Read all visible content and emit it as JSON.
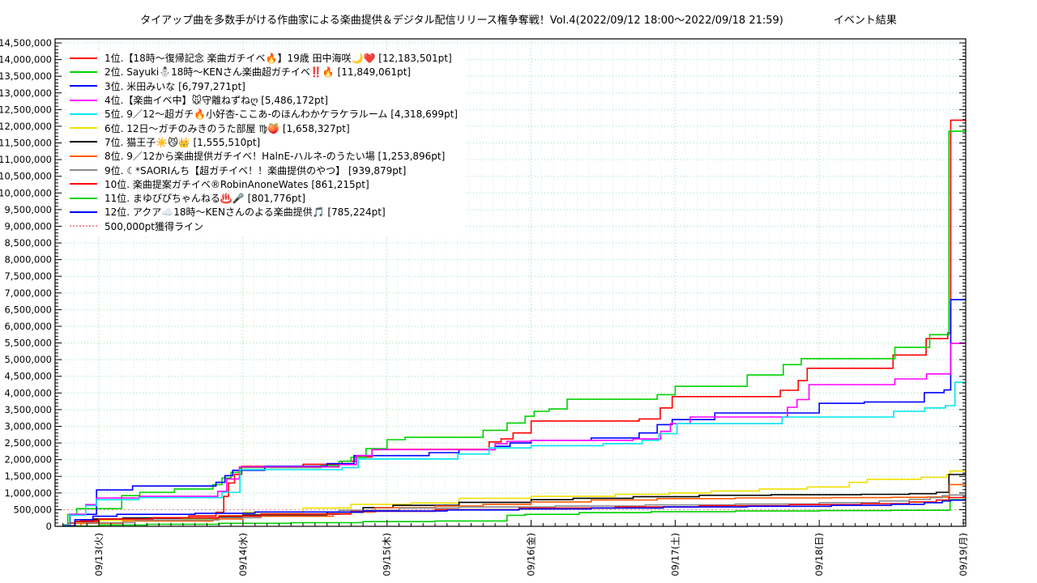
{
  "title": {
    "main": "タイアップ曲を多数手がける作曲家による楽曲提供＆デジタル配信リリース権争奪戦！Vol.4(2022/09/12 18:00～2022/09/18 21:59)",
    "suffix": "イベント結果"
  },
  "chart_data": {
    "type": "line",
    "step_interpolation": "step-after",
    "x_axis": {
      "domain_hours": [
        -1.3,
        150.4
      ],
      "epoch": "2022/09/12 18:00",
      "day_tick_hours": [
        6,
        30,
        54,
        78,
        102,
        126,
        150
      ],
      "labels": [
        "09/13(火)",
        "09/14(水)",
        "09/15(木)",
        "09/16(金)",
        "09/17(土)",
        "09/18(日)",
        "09/19(月)"
      ],
      "minor_tick_hours": 2
    },
    "y_axis": {
      "min": 0,
      "label_max": 14500000,
      "major_step": 500000,
      "minor_step": 100000,
      "tick_format": "comma"
    },
    "grid": {
      "major_color": "#9fe0a8",
      "texture_dot_color": "#c9efe9",
      "on": true
    },
    "threshold_line": {
      "value": 500000,
      "label": "500,000pt獲得ライン",
      "color": "#ff8d8d",
      "style": "dotted"
    },
    "legend_position": "top-left-inside",
    "series": [
      {
        "rank": 1,
        "legend_label": " 1位.【18時～復帰記念 楽曲ガチイベ🔥】19歳 田中海咲🌙❤️ [12,183,501pt]",
        "final_pt": 12183501,
        "color": "#ff0000",
        "points": [
          [
            0,
            20000
          ],
          [
            1,
            100000
          ],
          [
            3,
            190000
          ],
          [
            13,
            240000
          ],
          [
            21,
            310000
          ],
          [
            25.5,
            420000
          ],
          [
            26.8,
            900000
          ],
          [
            27.6,
            1300000
          ],
          [
            28.6,
            1560000
          ],
          [
            29.8,
            1800000
          ],
          [
            40,
            1860000
          ],
          [
            46.5,
            1950000
          ],
          [
            48.8,
            2080000
          ],
          [
            51.5,
            2310000
          ],
          [
            71,
            2530000
          ],
          [
            73,
            2620000
          ],
          [
            75,
            2800000
          ],
          [
            78,
            3160000
          ],
          [
            96,
            3220000
          ],
          [
            99.5,
            3550000
          ],
          [
            101.5,
            3890000
          ],
          [
            119.5,
            4080000
          ],
          [
            122.5,
            4370000
          ],
          [
            124,
            4740000
          ],
          [
            138.3,
            5140000
          ],
          [
            143.8,
            5630000
          ],
          [
            147.4,
            5800000
          ],
          [
            147.9,
            12183501
          ]
        ]
      },
      {
        "rank": 2,
        "legend_label": " 2位. Sayuki⛄18時～KENさん楽曲超ガチイベ‼️🔥 [11,849,061pt]",
        "final_pt": 11849061,
        "color": "#00d200",
        "points": [
          [
            0,
            50000
          ],
          [
            0.8,
            350000
          ],
          [
            2.3,
            530000
          ],
          [
            9.8,
            920000
          ],
          [
            12.8,
            1020000
          ],
          [
            18.6,
            1120000
          ],
          [
            25,
            1250000
          ],
          [
            26.5,
            1450000
          ],
          [
            28,
            1620000
          ],
          [
            29.6,
            1760000
          ],
          [
            43,
            1820000
          ],
          [
            46,
            1950000
          ],
          [
            48,
            2070000
          ],
          [
            50.5,
            2330000
          ],
          [
            54,
            2600000
          ],
          [
            57,
            2670000
          ],
          [
            70,
            2880000
          ],
          [
            74,
            3100000
          ],
          [
            77,
            3300000
          ],
          [
            78.5,
            3450000
          ],
          [
            81,
            3520000
          ],
          [
            84,
            3810000
          ],
          [
            99,
            3950000
          ],
          [
            102,
            4200000
          ],
          [
            114,
            4540000
          ],
          [
            120,
            4850000
          ],
          [
            123,
            5030000
          ],
          [
            138.6,
            5370000
          ],
          [
            144.4,
            5750000
          ],
          [
            147.6,
            11849061
          ]
        ]
      },
      {
        "rank": 3,
        "legend_label": " 3位. 米田みいな [6,797,271pt]",
        "final_pt": 6797271,
        "color": "#0000ff",
        "points": [
          [
            0,
            30000
          ],
          [
            1.2,
            360000
          ],
          [
            5.6,
            1090000
          ],
          [
            11.6,
            1210000
          ],
          [
            25.5,
            1320000
          ],
          [
            27,
            1520000
          ],
          [
            28.3,
            1680000
          ],
          [
            33.6,
            1800000
          ],
          [
            44,
            1880000
          ],
          [
            48.5,
            2120000
          ],
          [
            61,
            2210000
          ],
          [
            66,
            2300000
          ],
          [
            72,
            2400000
          ],
          [
            74.5,
            2500000
          ],
          [
            78,
            2580000
          ],
          [
            88,
            2650000
          ],
          [
            96,
            2800000
          ],
          [
            99,
            3050000
          ],
          [
            101.5,
            3200000
          ],
          [
            108.6,
            3400000
          ],
          [
            126,
            3690000
          ],
          [
            133.5,
            3730000
          ],
          [
            143.5,
            4010000
          ],
          [
            146.8,
            4090000
          ],
          [
            147.9,
            6797271
          ]
        ]
      },
      {
        "rank": 4,
        "legend_label": " 4位.【楽曲イベ中】🐭守離ねずねღ [5,486,172pt]",
        "final_pt": 5486172,
        "color": "#ff00ff",
        "points": [
          [
            0,
            40000
          ],
          [
            1.1,
            360000
          ],
          [
            3.8,
            650000
          ],
          [
            5.6,
            850000
          ],
          [
            12.7,
            900000
          ],
          [
            25.8,
            1050000
          ],
          [
            27.3,
            1420000
          ],
          [
            29.4,
            1780000
          ],
          [
            46,
            1850000
          ],
          [
            48.9,
            2120000
          ],
          [
            51.5,
            2300000
          ],
          [
            72,
            2480000
          ],
          [
            74,
            2550000
          ],
          [
            78,
            2580000
          ],
          [
            95,
            2620000
          ],
          [
            99.6,
            2850000
          ],
          [
            101.2,
            3080000
          ],
          [
            104.5,
            3280000
          ],
          [
            120.7,
            3570000
          ],
          [
            122.3,
            3800000
          ],
          [
            124.3,
            4250000
          ],
          [
            138.6,
            4420000
          ],
          [
            143.9,
            4570000
          ],
          [
            147.9,
            5486172
          ]
        ]
      },
      {
        "rank": 5,
        "legend_label": " 5位. 9／12～超ガチ🔥小好杏-ここあ-のほんわかケラケラルーム [4,318,699pt]",
        "final_pt": 4318699,
        "color": "#00e5ee",
        "points": [
          [
            0,
            40000
          ],
          [
            1.1,
            330000
          ],
          [
            3.8,
            620000
          ],
          [
            5.6,
            800000
          ],
          [
            12.7,
            860000
          ],
          [
            26.5,
            1020000
          ],
          [
            29.5,
            1700000
          ],
          [
            46.5,
            1760000
          ],
          [
            49.2,
            2020000
          ],
          [
            65.8,
            2170000
          ],
          [
            71,
            2350000
          ],
          [
            78,
            2420000
          ],
          [
            90,
            2480000
          ],
          [
            96.5,
            2580000
          ],
          [
            99.3,
            2780000
          ],
          [
            102.3,
            3080000
          ],
          [
            119.8,
            3280000
          ],
          [
            138.4,
            3450000
          ],
          [
            143.6,
            3550000
          ],
          [
            147,
            3620000
          ],
          [
            148.6,
            4318699
          ]
        ]
      },
      {
        "rank": 6,
        "legend_label": " 6位. 12日～ガチのみきのうた部屋 ♍🍑 [1,658,327pt]",
        "final_pt": 1658327,
        "color": "#f0e000",
        "points": [
          [
            0,
            20000
          ],
          [
            2,
            120000
          ],
          [
            6,
            180000
          ],
          [
            20,
            220000
          ],
          [
            26,
            320000
          ],
          [
            30,
            420000
          ],
          [
            40,
            550000
          ],
          [
            48,
            660000
          ],
          [
            58,
            700000
          ],
          [
            66,
            840000
          ],
          [
            78,
            900000
          ],
          [
            92,
            960000
          ],
          [
            101,
            1000000
          ],
          [
            108,
            1060000
          ],
          [
            116,
            1120000
          ],
          [
            124,
            1180000
          ],
          [
            131,
            1320000
          ],
          [
            134,
            1410000
          ],
          [
            143,
            1470000
          ],
          [
            147.2,
            1560000
          ],
          [
            147.8,
            1658327
          ]
        ]
      },
      {
        "rank": 7,
        "legend_label": " 7位. 猫王子☀️😼👑 [1,555,510pt]",
        "final_pt": 1555510,
        "color": "#000000",
        "points": [
          [
            0,
            10000
          ],
          [
            2,
            140000
          ],
          [
            5,
            220000
          ],
          [
            10,
            250000
          ],
          [
            26,
            290000
          ],
          [
            30,
            340000
          ],
          [
            44,
            420000
          ],
          [
            50,
            560000
          ],
          [
            55,
            630000
          ],
          [
            66,
            720000
          ],
          [
            78,
            800000
          ],
          [
            85,
            840000
          ],
          [
            95,
            890000
          ],
          [
            106,
            930000
          ],
          [
            118,
            950000
          ],
          [
            133,
            960000
          ],
          [
            141,
            980000
          ],
          [
            145.5,
            1020000
          ],
          [
            147.6,
            1555510
          ]
        ]
      },
      {
        "rank": 8,
        "legend_label": " 8位. 9／12から楽曲提供ガチイベ！HalnE-ハルネ-のうたい場 [1,253,896pt]",
        "final_pt": 1253896,
        "color": "#ff5a00",
        "points": [
          [
            0,
            10000
          ],
          [
            3,
            90000
          ],
          [
            10,
            160000
          ],
          [
            25,
            220000
          ],
          [
            30,
            300000
          ],
          [
            45,
            430000
          ],
          [
            52,
            560000
          ],
          [
            62,
            610000
          ],
          [
            70,
            660000
          ],
          [
            78,
            730000
          ],
          [
            88,
            790000
          ],
          [
            99,
            830000
          ],
          [
            112,
            850000
          ],
          [
            128,
            860000
          ],
          [
            138,
            870000
          ],
          [
            144,
            880000
          ],
          [
            147.7,
            1253896
          ]
        ]
      },
      {
        "rank": 9,
        "legend_label": " 9位. ☾*SAORIんち【超ガチイベ！！楽曲提供のやつ】 [939,879pt]",
        "final_pt": 939879,
        "color": "#8c8c8c",
        "points": [
          [
            0,
            10000
          ],
          [
            4,
            110000
          ],
          [
            12,
            190000
          ],
          [
            26,
            260000
          ],
          [
            33,
            360000
          ],
          [
            46,
            480000
          ],
          [
            56,
            550000
          ],
          [
            66,
            580000
          ],
          [
            82,
            610000
          ],
          [
            97,
            640000
          ],
          [
            112,
            670000
          ],
          [
            126,
            710000
          ],
          [
            136,
            760000
          ],
          [
            141,
            810000
          ],
          [
            144.5,
            860000
          ],
          [
            146.5,
            920000
          ],
          [
            147.6,
            939879
          ]
        ]
      },
      {
        "rank": 10,
        "legend_label": "10位. 楽曲提案ガチイベ®RobinAnoneWates [861,215pt]",
        "final_pt": 861215,
        "color": "#ff0000",
        "points": [
          [
            0,
            10000
          ],
          [
            2,
            150000
          ],
          [
            6,
            220000
          ],
          [
            15,
            260000
          ],
          [
            26,
            310000
          ],
          [
            33,
            370000
          ],
          [
            48,
            450000
          ],
          [
            62,
            500000
          ],
          [
            76,
            550000
          ],
          [
            92,
            580000
          ],
          [
            106,
            620000
          ],
          [
            121,
            650000
          ],
          [
            133,
            680000
          ],
          [
            141,
            730000
          ],
          [
            145.5,
            790000
          ],
          [
            147.6,
            861215
          ]
        ]
      },
      {
        "rank": 11,
        "legend_label": "11位. まゆぴぴちゃんねる♨️🎤 [801,776pt]",
        "final_pt": 801776,
        "color": "#00d200",
        "points": [
          [
            0,
            5000
          ],
          [
            6,
            40000
          ],
          [
            14,
            60000
          ],
          [
            26,
            90000
          ],
          [
            38,
            110000
          ],
          [
            50,
            140000
          ],
          [
            62,
            160000
          ],
          [
            74,
            330000
          ],
          [
            77,
            360000
          ],
          [
            86,
            410000
          ],
          [
            98,
            440000
          ],
          [
            112,
            460000
          ],
          [
            126,
            470000
          ],
          [
            138,
            480000
          ],
          [
            147.8,
            801776
          ]
        ]
      },
      {
        "rank": 12,
        "legend_label": "12位. アクア☁️18時～KENさんのよる楽曲提供🎵 [785,224pt]",
        "final_pt": 785224,
        "color": "#0000ff",
        "points": [
          [
            0,
            10000
          ],
          [
            2,
            200000
          ],
          [
            5,
            300000
          ],
          [
            9,
            360000
          ],
          [
            22,
            390000
          ],
          [
            32,
            430000
          ],
          [
            50,
            460000
          ],
          [
            64,
            490000
          ],
          [
            76,
            520000
          ],
          [
            88,
            550000
          ],
          [
            100,
            580000
          ],
          [
            114,
            600000
          ],
          [
            128,
            630000
          ],
          [
            138,
            660000
          ],
          [
            143.5,
            710000
          ],
          [
            146.5,
            760000
          ],
          [
            147.9,
            785224
          ]
        ]
      }
    ]
  }
}
